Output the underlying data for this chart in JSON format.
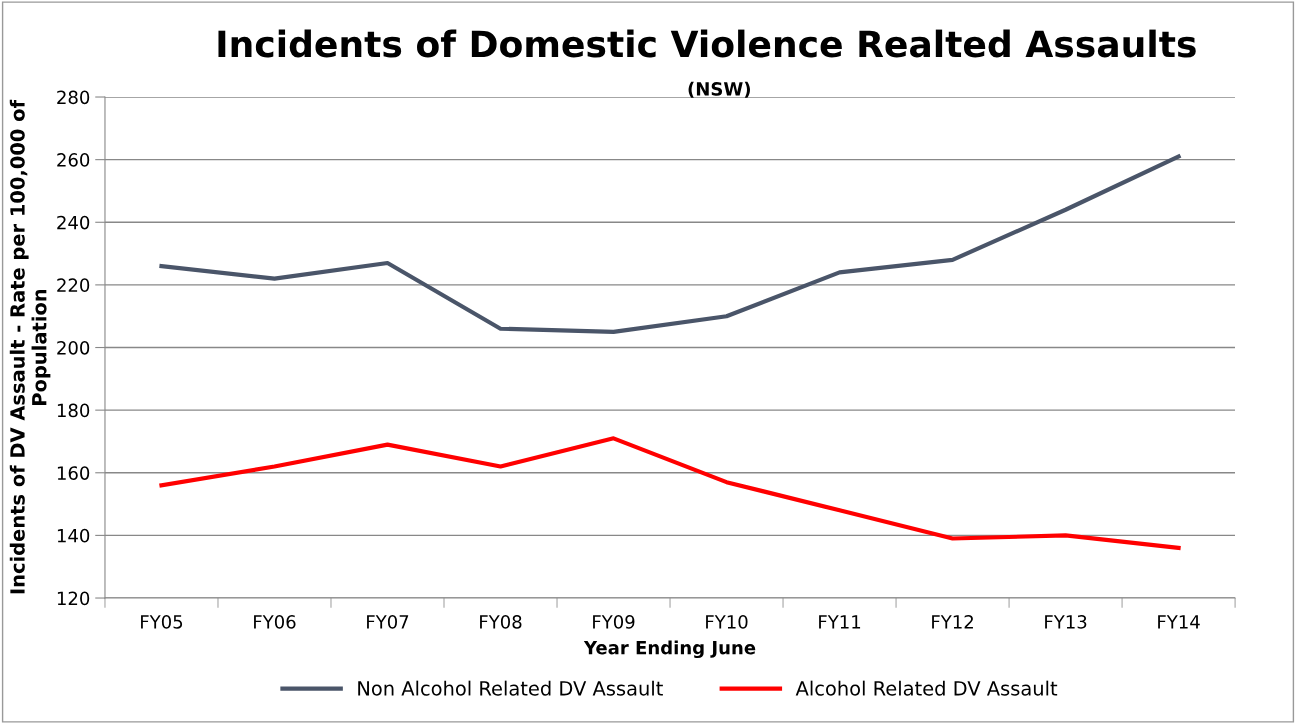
{
  "chart_data": {
    "type": "line",
    "title": "Incidents of Domestic Violence Realted Assaults",
    "subtitle": "(NSW)",
    "xlabel": "Year Ending June",
    "ylabel": "Incidents of DV Assault - Rate per 100,000 of\nPopulation",
    "categories": [
      "FY05",
      "FY06",
      "FY07",
      "FY08",
      "FY09",
      "FY10",
      "FY11",
      "FY12",
      "FY13",
      "FY14"
    ],
    "series": [
      {
        "name": "Non Alcohol Related DV Assault",
        "color": "#4a5569",
        "values": [
          226,
          222,
          227,
          206,
          205,
          210,
          224,
          228,
          244,
          261
        ]
      },
      {
        "name": "Alcohol Related DV Assault",
        "color": "#ff0000",
        "values": [
          156,
          162,
          169,
          162,
          171,
          157,
          148,
          139,
          140,
          136
        ]
      }
    ],
    "ylim": [
      120,
      280
    ],
    "yticks": [
      120,
      140,
      160,
      180,
      200,
      220,
      240,
      260,
      280
    ],
    "grid": "y",
    "legend": "bottom",
    "marker": "none",
    "line_style": "solid"
  }
}
